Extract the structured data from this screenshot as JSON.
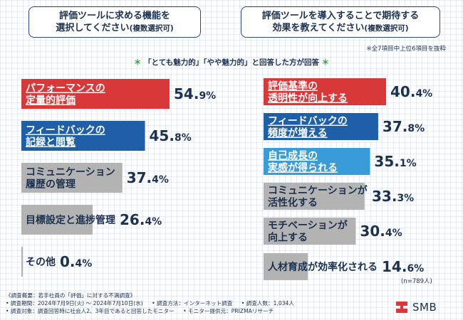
{
  "questions": {
    "left_main": "評価ツールに求める機能を",
    "left_sub": "選択してください",
    "left_paren": "(複数選択可)",
    "right_main": "評価ツールを導入することで期待する",
    "right_sub": "効果を教えてください",
    "right_paren": "(複数選択可)"
  },
  "note_top": "※全7項目中上位6項目を抜粋",
  "subtitle": "「とても魅力的」「やや魅力的」と回答した方が回答",
  "subtitle_mark": "＊",
  "chart_data": [
    {
      "type": "bar",
      "orientation": "horizontal",
      "categories": [
        [
          "パフォーマンスの",
          "定量的評価"
        ],
        [
          "フィードバックの",
          "記録と閲覧"
        ],
        [
          "コミュニケーション",
          "履歴の管理"
        ],
        [
          "目標設定と進捗管理"
        ],
        [
          "その他"
        ]
      ],
      "values": [
        54.9,
        45.8,
        37.4,
        26.4,
        0.4
      ],
      "unit": "%",
      "colors": [
        "#d93838",
        "#1f5fa8",
        "#b3b3b3",
        "#b3b3b3",
        "#b3b3b3"
      ]
    },
    {
      "type": "bar",
      "orientation": "horizontal",
      "categories": [
        [
          "評価基準の",
          "透明性が向上する"
        ],
        [
          "フィードバックの",
          "頻度が増える"
        ],
        [
          "自己成長の",
          "実感が得られる"
        ],
        [
          "コミュニケーションが",
          "活性化する"
        ],
        [
          "モチベーションが",
          "向上する"
        ],
        [
          "人材育成が効率化される"
        ]
      ],
      "values": [
        40.4,
        37.8,
        35.1,
        33.3,
        30.4,
        14.6
      ],
      "unit": "%",
      "colors": [
        "#d93838",
        "#1f5fa8",
        "#3a9bd9",
        "#b3b3b3",
        "#b3b3b3",
        "#b3b3b3"
      ],
      "n_label": "(n=789人)"
    }
  ],
  "footer": {
    "line1": "《調査概要：若手社員の「評価」に対する不満調査》",
    "line2_a": "• 調査期間：2024年7月9日(火) ～ 2024年7月10日(水)",
    "line2_b": "• 調査方法：インターネット調査",
    "line2_c": "• 調査人数：1,034人",
    "line3_a": "• 調査対象：調査回答時に社会人2、3年目であると回答したモニター",
    "line3_b": "• モニター提供元：PRIZMAリサーチ"
  },
  "logo": {
    "text": "SMB",
    "color": "#d93838"
  }
}
